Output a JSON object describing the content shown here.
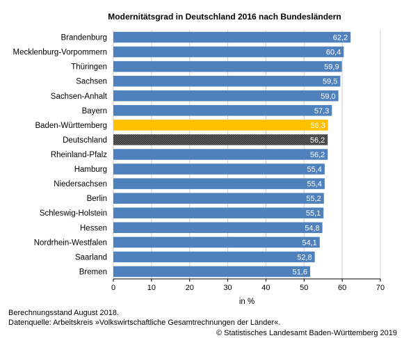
{
  "chart_data": {
    "type": "bar",
    "orientation": "horizontal",
    "title": "Modernitätsgrad in Deutschland 2016 nach Bundesländern",
    "xlabel": "in %",
    "ylabel": "",
    "xlim": [
      0,
      70
    ],
    "xticks": [
      "0",
      "10",
      "20",
      "30",
      "40",
      "50",
      "60",
      "70"
    ],
    "grid": true,
    "categories": [
      "Brandenburg",
      "Mecklenburg-Vorpommern",
      "Thüringen",
      "Sachsen",
      "Sachsen-Anhalt",
      "Bayern",
      "Baden-Württemberg",
      "Deutschland",
      "Rheinland-Pfalz",
      "Hamburg",
      "Niedersachsen",
      "Berlin",
      "Schleswig-Holstein",
      "Hessen",
      "Nordrhein-Westfalen",
      "Saarland",
      "Bremen"
    ],
    "values": [
      62.2,
      60.4,
      59.9,
      59.5,
      59.0,
      57.3,
      56.3,
      56.2,
      56.2,
      55.4,
      55.4,
      55.2,
      55.1,
      54.8,
      54.1,
      52.8,
      51.6
    ],
    "value_labels": [
      "62,2",
      "60,4",
      "59,9",
      "59,5",
      "59,0",
      "57,3",
      "56,3",
      "56,2",
      "56,2",
      "55,4",
      "55,4",
      "55,2",
      "55,1",
      "54,8",
      "54,1",
      "52,8",
      "51,6"
    ],
    "colors": {
      "default": "#4f81bd",
      "Baden-Württemberg": "#ffc000",
      "Deutschland": "#404040"
    }
  },
  "footer": {
    "line1": "Berechnungsstand August 2018.",
    "line2": "Datenquelle: Arbeitskreis »Volkswirtschaftliche Gesamtrechnungen der Länder«.",
    "copyright": "© Statistisches Landesamt Baden-Württemberg 2019"
  }
}
